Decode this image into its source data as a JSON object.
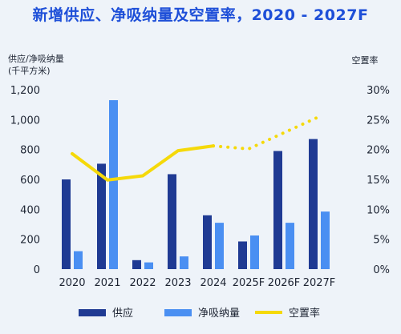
{
  "chart_data": {
    "type": "bar",
    "title": "新增供应、净吸纳量及空置率，2020 - 2027F",
    "ylabel_left": "供应/净吸纳量\n(千平方米)",
    "ylabel_right": "空置率",
    "categories": [
      "2020",
      "2021",
      "2022",
      "2023",
      "2024",
      "2025F",
      "2026F",
      "2027F"
    ],
    "ylim_left": [
      0,
      1200
    ],
    "yticks_left": [
      "0",
      "200",
      "400",
      "600",
      "800",
      "1,000",
      "1,200"
    ],
    "ylim_right": [
      0,
      30
    ],
    "yticks_right": [
      "0%",
      "5%",
      "10%",
      "15%",
      "20%",
      "25%",
      "30%"
    ],
    "series": [
      {
        "name": "供应",
        "type": "bar",
        "axis": "left",
        "color": "#1f3a93",
        "values": [
          600,
          705,
          60,
          635,
          360,
          185,
          790,
          870
        ]
      },
      {
        "name": "净吸纳量",
        "type": "bar",
        "axis": "left",
        "color": "#4a8ff2",
        "values": [
          120,
          1130,
          45,
          85,
          310,
          225,
          310,
          385
        ]
      },
      {
        "name": "空置率",
        "type": "line",
        "axis": "right",
        "color": "#f5d90a",
        "values": [
          19.3,
          14.9,
          15.6,
          19.8,
          20.6,
          20.1,
          22.8,
          25.5
        ],
        "dashed_from_index": 4
      }
    ],
    "legend_position": "bottom",
    "grid": false
  }
}
